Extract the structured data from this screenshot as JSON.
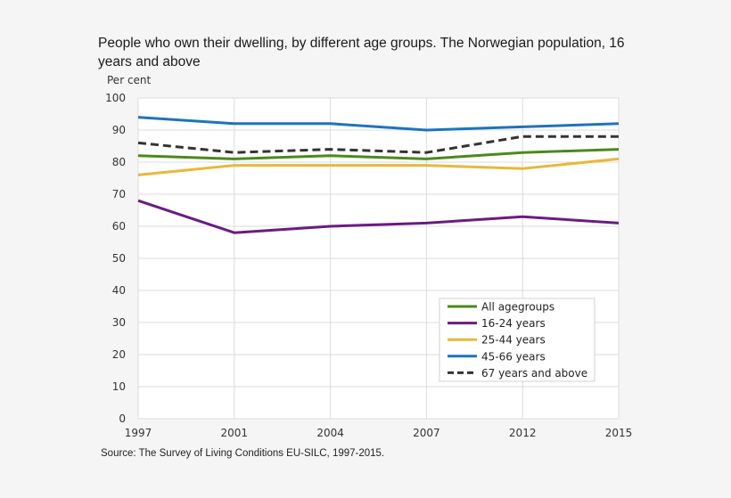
{
  "chart_data": {
    "type": "line",
    "title": "People who own their dwelling, by different age groups. The Norwegian population, 16 years and above",
    "xlabel": "",
    "ylabel": "Per cent",
    "x": [
      "1997",
      "2001",
      "2004",
      "2007",
      "2012",
      "2015"
    ],
    "ylim": [
      0,
      100
    ],
    "yticks": [
      0,
      10,
      20,
      30,
      40,
      50,
      60,
      70,
      80,
      90,
      100
    ],
    "grid": true,
    "legend_position": "bottom-right",
    "series": [
      {
        "name": "All agegroups",
        "color": "#4a8a1c",
        "dashed": false,
        "values": [
          82,
          81,
          82,
          81,
          83,
          84
        ]
      },
      {
        "name": "16-24 years",
        "color": "#6b1b82",
        "dashed": false,
        "values": [
          68,
          58,
          60,
          61,
          63,
          61
        ]
      },
      {
        "name": "25-44 years",
        "color": "#e8b83a",
        "dashed": false,
        "values": [
          76,
          79,
          79,
          79,
          78,
          81
        ]
      },
      {
        "name": "45-66 years",
        "color": "#1e73be",
        "dashed": false,
        "values": [
          94,
          92,
          92,
          90,
          91,
          92
        ]
      },
      {
        "name": "67 years and above",
        "color": "#333333",
        "dashed": true,
        "values": [
          86,
          83,
          84,
          83,
          88,
          88
        ]
      }
    ],
    "source": "Source: The Survey of Living Conditions  EU-SILC, 1997-2015."
  }
}
